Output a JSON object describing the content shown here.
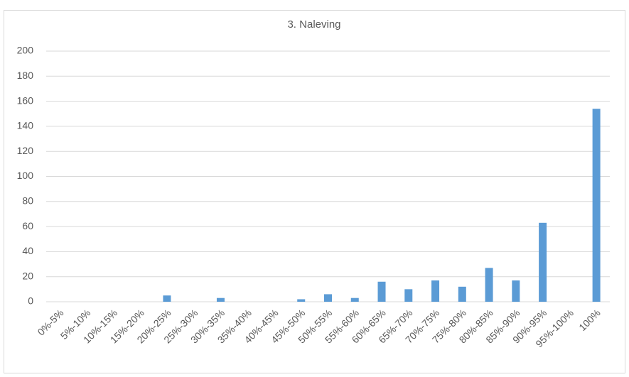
{
  "chart_data": {
    "type": "bar",
    "title": "3. Naleving",
    "categories": [
      "0%-5%",
      "5%-10%",
      "10%-15%",
      "15%-20%",
      "20%-25%",
      "25%-30%",
      "30%-35%",
      "35%-40%",
      "40%-45%",
      "45%-50%",
      "50%-55%",
      "55%-60%",
      "60%-65%",
      "65%-70%",
      "70%-75%",
      "75%-80%",
      "80%-85%",
      "85%-90%",
      "90%-95%",
      "95%-100%",
      "100%"
    ],
    "values": [
      0,
      0,
      0,
      0,
      5,
      0,
      3,
      0,
      0,
      2,
      6,
      3,
      16,
      10,
      17,
      12,
      27,
      17,
      63,
      0,
      154
    ],
    "color": "#5b9bd5",
    "ylim": [
      0,
      200
    ],
    "yticks": [
      0,
      20,
      40,
      60,
      80,
      100,
      120,
      140,
      160,
      180,
      200
    ],
    "grid": true
  }
}
